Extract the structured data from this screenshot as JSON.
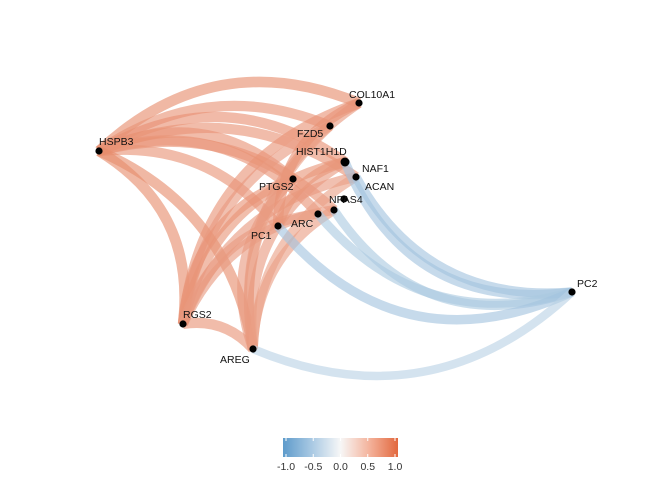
{
  "chart_data": {
    "type": "network",
    "nodes": [
      "HSPB3",
      "COL10A1",
      "FZD5",
      "HIST1H1D",
      "NAF1",
      "PTGS2",
      "ACAN",
      "NPAS4",
      "ARC",
      "PC1",
      "PC2",
      "RGS2",
      "AREG"
    ],
    "edges": [
      {
        "from": "HSPB3",
        "to": "COL10A1",
        "weight": 0.75
      },
      {
        "from": "HSPB3",
        "to": "FZD5",
        "weight": 0.7
      },
      {
        "from": "HSPB3",
        "to": "HIST1H1D",
        "weight": 0.72
      },
      {
        "from": "HSPB3",
        "to": "NAF1",
        "weight": 0.7
      },
      {
        "from": "HSPB3",
        "to": "PTGS2",
        "weight": 0.7
      },
      {
        "from": "HSPB3",
        "to": "NPAS4",
        "weight": 0.7
      },
      {
        "from": "HSPB3",
        "to": "ARC",
        "weight": 0.7
      },
      {
        "from": "HSPB3",
        "to": "PC1",
        "weight": 0.7
      },
      {
        "from": "HSPB3",
        "to": "RGS2",
        "weight": 0.75
      },
      {
        "from": "HSPB3",
        "to": "AREG",
        "weight": 0.75
      },
      {
        "from": "RGS2",
        "to": "COL10A1",
        "weight": 0.7
      },
      {
        "from": "RGS2",
        "to": "FZD5",
        "weight": 0.65
      },
      {
        "from": "RGS2",
        "to": "HIST1H1D",
        "weight": 0.68
      },
      {
        "from": "RGS2",
        "to": "NAF1",
        "weight": 0.65
      },
      {
        "from": "RGS2",
        "to": "PTGS2",
        "weight": 0.7
      },
      {
        "from": "RGS2",
        "to": "NPAS4",
        "weight": 0.65
      },
      {
        "from": "RGS2",
        "to": "ARC",
        "weight": 0.65
      },
      {
        "from": "RGS2",
        "to": "AREG",
        "weight": 0.7
      },
      {
        "from": "AREG",
        "to": "COL10A1",
        "weight": 0.65
      },
      {
        "from": "AREG",
        "to": "FZD5",
        "weight": 0.6
      },
      {
        "from": "AREG",
        "to": "HIST1H1D",
        "weight": 0.65
      },
      {
        "from": "AREG",
        "to": "NAF1",
        "weight": 0.6
      },
      {
        "from": "AREG",
        "to": "PTGS2",
        "weight": 0.65
      },
      {
        "from": "AREG",
        "to": "NPAS4",
        "weight": 0.62
      },
      {
        "from": "PC1",
        "to": "COL10A1",
        "weight": 0.7
      },
      {
        "from": "PC1",
        "to": "HIST1H1D",
        "weight": 0.68
      },
      {
        "from": "PC2",
        "to": "HIST1H1D",
        "weight": -0.55
      },
      {
        "from": "PC2",
        "to": "NAF1",
        "weight": -0.55
      },
      {
        "from": "PC2",
        "to": "NPAS4",
        "weight": -0.5
      },
      {
        "from": "PC2",
        "to": "ARC",
        "weight": -0.5
      },
      {
        "from": "PC2",
        "to": "PC1",
        "weight": -0.55
      },
      {
        "from": "PC2",
        "to": "AREG",
        "weight": -0.4
      }
    ],
    "legend": {
      "position": "bottom",
      "range": [
        -1,
        1
      ],
      "ticks": [
        "-1.0",
        "-0.5",
        "0.0",
        "0.5",
        "1.0"
      ],
      "colors": {
        "negative": "#6aa0cf",
        "zero": "#f7f7f7",
        "positive": "#e56b45"
      }
    }
  }
}
